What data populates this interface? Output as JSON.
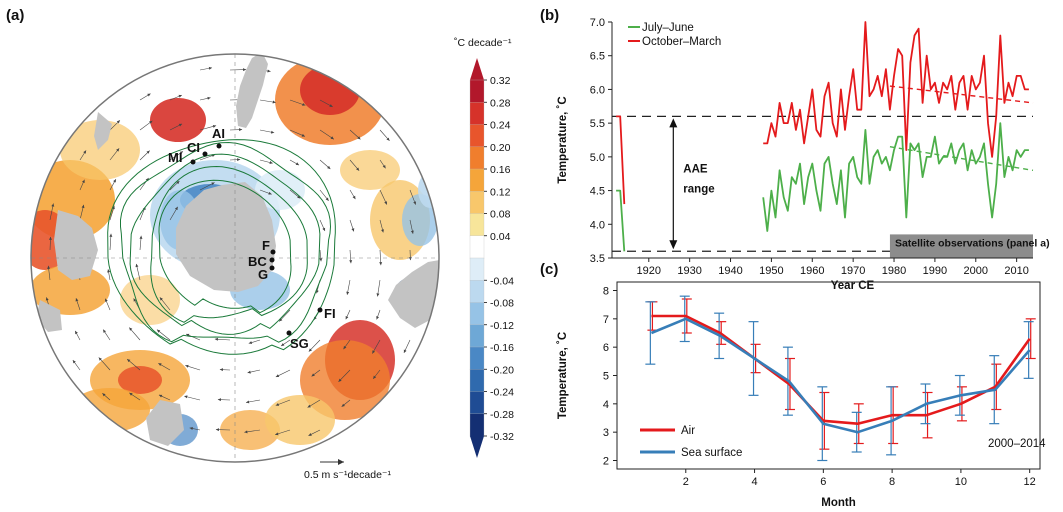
{
  "panels": {
    "a": "(a)",
    "b": "(b)",
    "c": "(c)"
  },
  "colorbar": {
    "unit_label": "˚C decade⁻¹",
    "ticks": [
      "0.32",
      "0.28",
      "0.24",
      "0.20",
      "0.16",
      "0.12",
      "0.08",
      "0.04",
      "-0.04",
      "-0.08",
      "-0.12",
      "-0.16",
      "-0.20",
      "-0.24",
      "-0.28",
      "-0.32"
    ],
    "colors": [
      "#b2182b",
      "#d6322a",
      "#e8552c",
      "#f07e2d",
      "#f5a53a",
      "#f8c76b",
      "#f7e59a",
      "#ffffff",
      "#deedf7",
      "#bcd9ef",
      "#96c3e6",
      "#6ea8d6",
      "#4a88c5",
      "#2f6aae",
      "#1f4c94",
      "#142f73"
    ]
  },
  "map": {
    "sites": [
      "AI",
      "CI",
      "MI",
      "F",
      "BC",
      "G",
      "FI",
      "SG"
    ],
    "vector_scale_label": "0.5 m s⁻¹decade⁻¹"
  },
  "chart_data": [
    {
      "panel": "b",
      "type": "line",
      "ylabel": "Temperature, ˚C",
      "xlabel": "Year CE",
      "xlim": [
        1911,
        2014
      ],
      "ylim": [
        3.5,
        7.0
      ],
      "xticks": [
        1920,
        1930,
        1940,
        1950,
        1960,
        1970,
        1980,
        1990,
        2000,
        2010
      ],
      "yticks": [
        3.5,
        4.0,
        4.5,
        5.0,
        5.5,
        6.0,
        6.5,
        7.0
      ],
      "series": [
        {
          "name": "July–June",
          "color": "#4daf4a",
          "segments": [
            {
              "x": [
                1912,
                1913,
                1914
              ],
              "y": [
                4.5,
                4.5,
                3.6
              ]
            },
            {
              "x": [
                1948,
                1949,
                1950,
                1951,
                1952,
                1953,
                1954,
                1955,
                1956,
                1957,
                1958,
                1959,
                1960,
                1961,
                1962,
                1963,
                1964,
                1965,
                1966,
                1967,
                1968,
                1969,
                1970,
                1971,
                1972,
                1973,
                1974,
                1975,
                1976,
                1977,
                1978,
                1979,
                1980,
                1981,
                1982,
                1983,
                1984,
                1985,
                1986,
                1987,
                1988,
                1989,
                1990,
                1991,
                1992,
                1993,
                1994,
                1995,
                1996,
                1997,
                1998,
                1999,
                2000,
                2001,
                2002,
                2003,
                2004,
                2005,
                2006,
                2007,
                2008,
                2009,
                2010,
                2011,
                2012,
                2013
              ],
              "y": [
                4.4,
                3.9,
                4.5,
                4.1,
                4.8,
                4.4,
                4.2,
                4.7,
                4.6,
                4.9,
                4.3,
                4.7,
                4.9,
                4.5,
                4.2,
                4.9,
                5.0,
                4.6,
                4.3,
                4.8,
                4.1,
                4.9,
                5.0,
                4.7,
                4.6,
                5.4,
                4.6,
                5.0,
                5.1,
                4.9,
                5.0,
                4.8,
                5.1,
                5.3,
                5.3,
                4.1,
                5.2,
                5.1,
                5.2,
                4.7,
                5.0,
                5.0,
                5.3,
                4.9,
                5.0,
                5.0,
                5.2,
                4.9,
                5.1,
                5.2,
                4.8,
                5.1,
                4.9,
                5.0,
                5.2,
                4.6,
                4.1,
                4.6,
                5.5,
                4.7,
                5.0,
                4.8,
                5.1,
                5.0,
                5.1,
                5.1
              ]
            }
          ],
          "trend": {
            "x": [
              1979,
              2014
            ],
            "y": [
              5.15,
              4.8
            ]
          }
        },
        {
          "name": "October–March",
          "color": "#e41a1c",
          "segments": [
            {
              "x": [
                1912,
                1913,
                1914
              ],
              "y": [
                5.6,
                5.6,
                4.3
              ]
            },
            {
              "x": [
                1948,
                1949,
                1950,
                1951,
                1952,
                1953,
                1954,
                1955,
                1956,
                1957,
                1958,
                1959,
                1960,
                1961,
                1962,
                1963,
                1964,
                1965,
                1966,
                1967,
                1968,
                1969,
                1970,
                1971,
                1972,
                1973,
                1974,
                1975,
                1976,
                1977,
                1978,
                1979,
                1980,
                1981,
                1982,
                1983,
                1984,
                1985,
                1986,
                1987,
                1988,
                1989,
                1990,
                1991,
                1992,
                1993,
                1994,
                1995,
                1996,
                1997,
                1998,
                1999,
                2000,
                2001,
                2002,
                2003,
                2004,
                2005,
                2006,
                2007,
                2008,
                2009,
                2010,
                2011,
                2012,
                2013
              ],
              "y": [
                5.2,
                5.2,
                5.5,
                5.3,
                5.8,
                5.5,
                5.5,
                5.8,
                5.4,
                5.7,
                5.2,
                5.6,
                6.0,
                5.4,
                5.3,
                5.9,
                6.1,
                5.5,
                5.3,
                6.0,
                5.4,
                5.9,
                6.3,
                5.7,
                5.7,
                7.0,
                5.9,
                6.0,
                6.2,
                5.9,
                6.3,
                5.7,
                6.2,
                6.6,
                6.5,
                5.1,
                6.4,
                6.8,
                6.9,
                5.8,
                6.5,
                6.0,
                6.1,
                5.8,
                6.1,
                6.0,
                6.2,
                5.7,
                6.1,
                6.2,
                5.7,
                6.2,
                6.0,
                6.1,
                6.5,
                5.5,
                5.0,
                5.6,
                6.8,
                5.8,
                6.1,
                5.9,
                6.2,
                6.2,
                6.0,
                6.0
              ]
            }
          ],
          "trend": {
            "x": [
              1979,
              2014
            ],
            "y": [
              6.05,
              5.8
            ]
          }
        }
      ],
      "hlines": [
        5.6,
        3.6
      ],
      "annotation": {
        "text_line1": "AAE",
        "text_line2": "range",
        "arrow_from": 5.6,
        "arrow_to": 3.6,
        "x": 1926
      },
      "satellite_label": "Satellite observations (panel a)",
      "satellite_from_year": 1979
    },
    {
      "panel": "c",
      "type": "line",
      "ylabel": "Temperature, ˚C",
      "xlabel": "Month",
      "annotation": "2000–2014",
      "xlim": [
        0,
        12.3
      ],
      "ylim": [
        1.7,
        8.3
      ],
      "xticks": [
        2,
        4,
        6,
        8,
        10,
        12
      ],
      "yticks": [
        2,
        3,
        4,
        5,
        6,
        7,
        8
      ],
      "x": [
        1,
        2,
        3,
        4,
        5,
        6,
        7,
        8,
        9,
        10,
        11,
        12
      ],
      "series": [
        {
          "name": "Air",
          "color": "#e41a1c",
          "values": [
            7.1,
            7.1,
            6.5,
            5.6,
            4.7,
            3.4,
            3.3,
            3.6,
            3.6,
            4.0,
            4.6,
            6.3
          ],
          "errors": [
            0.5,
            0.6,
            0.4,
            0.5,
            0.9,
            1.0,
            0.7,
            1.0,
            0.8,
            0.6,
            0.8,
            0.7
          ]
        },
        {
          "name": "Sea surface",
          "color": "#377eb8",
          "values": [
            6.5,
            7.0,
            6.4,
            5.6,
            4.8,
            3.3,
            3.0,
            3.4,
            4.0,
            4.3,
            4.5,
            5.9
          ],
          "errors": [
            1.1,
            0.8,
            0.8,
            1.3,
            1.2,
            1.3,
            0.7,
            1.2,
            0.7,
            0.7,
            1.2,
            1.0
          ]
        }
      ]
    }
  ]
}
